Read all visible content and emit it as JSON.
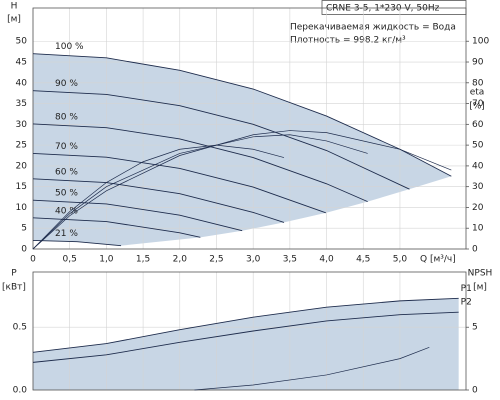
{
  "chart_data": [
    {
      "type": "line",
      "model": "CRNE 3-5, 1*230 V, 50Hz",
      "annotations": [
        "Перекачиваемая жидкость = Вода",
        "Плотность = 998.2 кг/м³"
      ],
      "ylabel": [
        "H",
        "[м]"
      ],
      "y2label": [
        "eta",
        "[%]"
      ],
      "xlabel": "Q [м³/ч]",
      "xlim": [
        0,
        5.9
      ],
      "ylim": [
        0,
        58
      ],
      "y2lim": [
        0,
        116
      ],
      "xticks": [
        0,
        {
          "value": 0.5,
          "label": "0,5"
        },
        {
          "value": 1,
          "label": "1,0"
        },
        {
          "value": 1.5,
          "label": "1,5"
        },
        {
          "value": 2,
          "label": "2,0"
        },
        {
          "value": 2.5,
          "label": "2,5"
        },
        {
          "value": 3,
          "label": "3,0"
        },
        {
          "value": 3.5,
          "label": "3,5"
        },
        {
          "value": 4,
          "label": "4,0"
        },
        {
          "value": 4.5,
          "label": "4,5"
        },
        {
          "value": 5,
          "label": "5,0"
        }
      ],
      "yticks": [
        0,
        5,
        10,
        15,
        20,
        25,
        30,
        35,
        40,
        45,
        50
      ],
      "y2ticks": [
        0,
        10,
        20,
        30,
        40,
        50,
        60,
        70,
        80,
        90,
        100
      ],
      "grid": true,
      "fill": "#c8d6e5",
      "series": [
        {
          "name": "100 %",
          "color": "#1f2d4d",
          "x": [
            0,
            1,
            2,
            3,
            4,
            5,
            5.7
          ],
          "values": [
            47,
            46,
            43,
            38.5,
            32,
            24,
            17.5
          ]
        },
        {
          "name": "90 %",
          "color": "#1f2d4d",
          "x": [
            0,
            1,
            2,
            3,
            4,
            5.13
          ],
          "values": [
            38.1,
            37.2,
            34.5,
            30,
            23.7,
            14.4
          ]
        },
        {
          "name": "80 %",
          "color": "#1f2d4d",
          "x": [
            0,
            1,
            2,
            3,
            4,
            4.56
          ],
          "values": [
            30.1,
            29.2,
            26.5,
            22,
            15.7,
            11.4
          ]
        },
        {
          "name": "70 %",
          "color": "#1f2d4d",
          "x": [
            0,
            1,
            2,
            3,
            3.99
          ],
          "values": [
            23,
            22.1,
            19.4,
            14.9,
            8.7
          ]
        },
        {
          "name": "60 %",
          "color": "#1f2d4d",
          "x": [
            0,
            1,
            2,
            3,
            3.42
          ],
          "values": [
            16.9,
            16,
            13.3,
            8.8,
            6.4
          ]
        },
        {
          "name": "50 %",
          "color": "#1f2d4d",
          "x": [
            0,
            1,
            2,
            2.85
          ],
          "values": [
            11.75,
            10.85,
            8.15,
            4.4
          ]
        },
        {
          "name": "40 %",
          "color": "#1f2d4d",
          "x": [
            0,
            1,
            2,
            2.28
          ],
          "values": [
            7.5,
            6.6,
            3.9,
            2.8
          ]
        },
        {
          "name": "21 %",
          "color": "#1f2d4d",
          "x": [
            0,
            0.6,
            1.2
          ],
          "values": [
            2.07,
            1.75,
            0.8
          ]
        },
        {
          "axis": "y2",
          "color": "#1f2d4d",
          "x": [
            0,
            0.5,
            1,
            2,
            3,
            3.5,
            4,
            5,
            5.7
          ],
          "values": [
            0,
            16,
            28,
            45,
            55,
            57,
            56,
            48,
            38
          ]
        },
        {
          "axis": "y2",
          "color": "#1f2d4d",
          "x": [
            0,
            0.5,
            1,
            2,
            3,
            3.5,
            4,
            4.56
          ],
          "values": [
            0,
            17,
            30,
            46,
            54,
            55,
            52,
            46
          ]
        },
        {
          "axis": "y2",
          "color": "#1f2d4d",
          "x": [
            0,
            0.5,
            1,
            1.5,
            2,
            2.5,
            3,
            3.42
          ],
          "values": [
            0,
            18,
            32,
            42,
            48,
            50,
            48,
            44
          ]
        }
      ]
    },
    {
      "type": "line",
      "ylabel": [
        "P",
        "[кВт]"
      ],
      "y2label": [
        "NPSH",
        "[м]"
      ],
      "xlim": [
        0,
        5.9
      ],
      "ylim": [
        0,
        0.94
      ],
      "y2lim": [
        0,
        9.4
      ],
      "yticks": [
        {
          "value": 0,
          "label": "0.0"
        },
        0.5
      ],
      "y2ticks": [
        0,
        5
      ],
      "grid": true,
      "fill": "#c8d6e5",
      "series": [
        {
          "name": "P1",
          "color": "#1f2d4d",
          "x": [
            0,
            1,
            2,
            3,
            4,
            5,
            5.8
          ],
          "values": [
            0.3,
            0.37,
            0.48,
            0.58,
            0.66,
            0.71,
            0.73
          ]
        },
        {
          "name": "P2",
          "color": "#1f2d4d",
          "x": [
            0,
            1,
            2,
            3,
            4,
            5,
            5.8
          ],
          "values": [
            0.22,
            0.28,
            0.38,
            0.47,
            0.55,
            0.6,
            0.62
          ]
        },
        {
          "axis": "y2",
          "color": "#1f2d4d",
          "x": [
            2.2,
            3,
            4,
            5,
            5.4
          ],
          "values": [
            0,
            0.4,
            1.2,
            2.5,
            3.4
          ]
        }
      ]
    }
  ]
}
